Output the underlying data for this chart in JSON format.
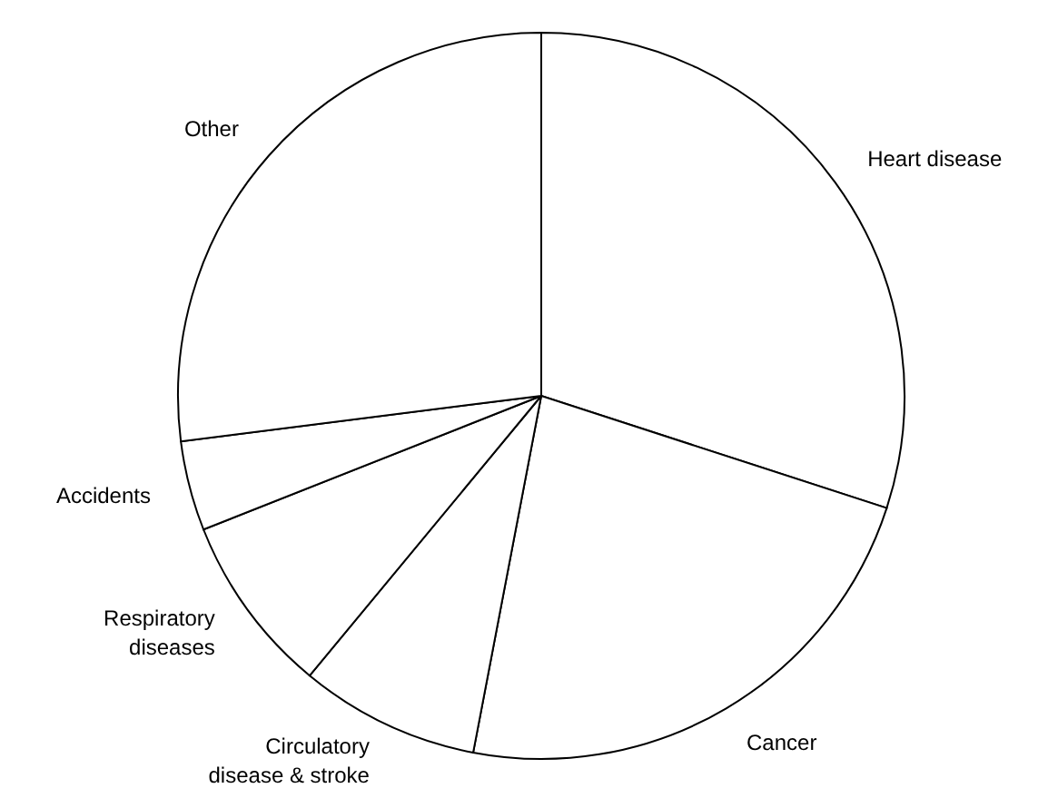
{
  "chart_data": {
    "type": "pie",
    "categories": [
      "Heart disease",
      "Cancer",
      "Circulatory disease & stroke",
      "Respiratory diseases",
      "Accidents",
      "Other"
    ],
    "values": [
      30,
      23,
      8,
      8,
      4,
      27
    ],
    "colors": [
      "#ffffff",
      "#ffffff",
      "#ffffff",
      "#ffffff",
      "#ffffff",
      "#ffffff"
    ]
  }
}
